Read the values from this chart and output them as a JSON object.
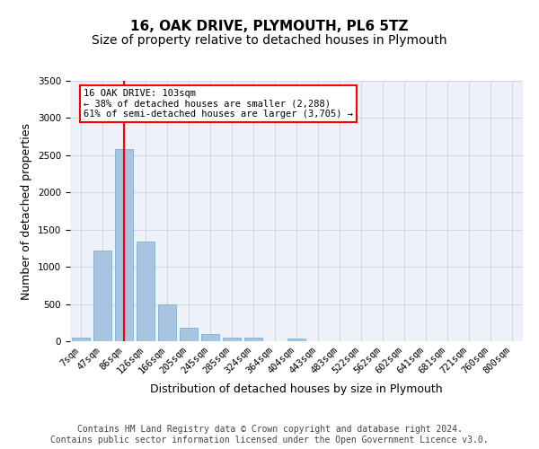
{
  "title1": "16, OAK DRIVE, PLYMOUTH, PL6 5TZ",
  "title2": "Size of property relative to detached houses in Plymouth",
  "xlabel": "Distribution of detached houses by size in Plymouth",
  "ylabel": "Number of detached properties",
  "bin_labels": [
    "7sqm",
    "47sqm",
    "86sqm",
    "126sqm",
    "166sqm",
    "205sqm",
    "245sqm",
    "285sqm",
    "324sqm",
    "364sqm",
    "404sqm",
    "443sqm",
    "483sqm",
    "522sqm",
    "562sqm",
    "602sqm",
    "641sqm",
    "681sqm",
    "721sqm",
    "760sqm",
    "800sqm"
  ],
  "bar_values": [
    50,
    1220,
    2580,
    1340,
    490,
    185,
    100,
    50,
    45,
    0,
    35,
    0,
    0,
    0,
    0,
    0,
    0,
    0,
    0,
    0,
    0
  ],
  "bar_color": "#a8c4e0",
  "bar_edge_color": "#6fa8d0",
  "grid_color": "#d0d8e8",
  "background_color": "#eef2f8",
  "ylim": [
    0,
    3500
  ],
  "yticks": [
    0,
    500,
    1000,
    1500,
    2000,
    2500,
    3000,
    3500
  ],
  "red_line_bin": 2,
  "annotation_text_line1": "16 OAK DRIVE: 103sqm",
  "annotation_text_line2": "← 38% of detached houses are smaller (2,288)",
  "annotation_text_line3": "61% of semi-detached houses are larger (3,705) →",
  "footer1": "Contains HM Land Registry data © Crown copyright and database right 2024.",
  "footer2": "Contains public sector information licensed under the Open Government Licence v3.0.",
  "title_fontsize": 11,
  "subtitle_fontsize": 10,
  "axis_label_fontsize": 9,
  "tick_fontsize": 7.5,
  "annotation_fontsize": 7.5,
  "footer_fontsize": 7
}
